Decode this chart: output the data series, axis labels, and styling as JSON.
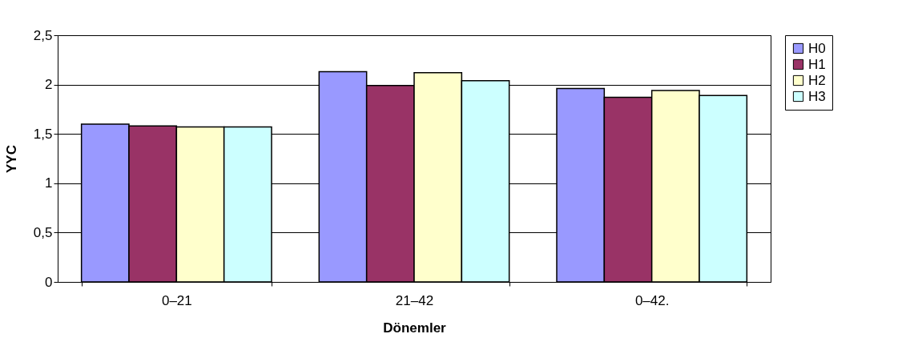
{
  "chart_data": {
    "type": "bar",
    "xlabel": "Dönemler",
    "ylabel": "YYC",
    "categories": [
      "0–21",
      "21–42",
      "0–42."
    ],
    "series": [
      {
        "name": "H0",
        "color": "#9999ff",
        "values": [
          1.6,
          2.13,
          1.96
        ]
      },
      {
        "name": "H1",
        "color": "#993366",
        "values": [
          1.58,
          1.99,
          1.87
        ]
      },
      {
        "name": "H2",
        "color": "#ffffcc",
        "values": [
          1.57,
          2.12,
          1.94
        ]
      },
      {
        "name": "H3",
        "color": "#ccffff",
        "values": [
          1.57,
          2.04,
          1.89
        ]
      }
    ],
    "ylim": [
      0,
      2.5
    ],
    "yticks": [
      0,
      {
        "value": 0.5,
        "label": "0,5"
      },
      1,
      {
        "value": 1.5,
        "label": "1,5"
      },
      2,
      {
        "value": 2.5,
        "label": "2,5"
      }
    ],
    "grid": "y",
    "legend": "right"
  }
}
